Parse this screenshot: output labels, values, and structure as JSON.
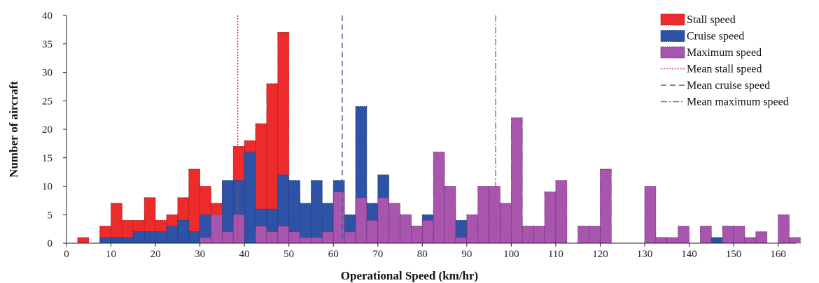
{
  "chart_data": {
    "type": "bar",
    "xlabel": "Operational Speed (km/hr)",
    "ylabel": "Number of aircraft",
    "xlim": [
      0,
      164
    ],
    "ylim": [
      0,
      40
    ],
    "x_ticks": [
      0,
      10,
      20,
      30,
      40,
      50,
      60,
      70,
      80,
      90,
      100,
      110,
      120,
      130,
      140,
      150,
      160
    ],
    "y_ticks": [
      0,
      5,
      10,
      15,
      20,
      25,
      30,
      35,
      40
    ],
    "bin_width": 2.5,
    "legend_position": "top-right",
    "grid": false,
    "series": [
      {
        "name": "Stall speed",
        "color": "#ee2b2b",
        "bins": [
          [
            2.5,
            1
          ],
          [
            7.5,
            3
          ],
          [
            10,
            7
          ],
          [
            12.5,
            4
          ],
          [
            15,
            4
          ],
          [
            17.5,
            8
          ],
          [
            20,
            4
          ],
          [
            22.5,
            5
          ],
          [
            25,
            8
          ],
          [
            27.5,
            13
          ],
          [
            30,
            10
          ],
          [
            32.5,
            7
          ],
          [
            35,
            10
          ],
          [
            37.5,
            17
          ],
          [
            40,
            18
          ],
          [
            42.5,
            21
          ],
          [
            45,
            28
          ],
          [
            47.5,
            37
          ],
          [
            50,
            9
          ],
          [
            52.5,
            3
          ],
          [
            55,
            1
          ],
          [
            57.5,
            1
          ],
          [
            60,
            2
          ],
          [
            62.5,
            2
          ],
          [
            65,
            1
          ]
        ]
      },
      {
        "name": "Cruise speed",
        "color": "#2e52a5",
        "bins": [
          [
            7.5,
            1
          ],
          [
            10,
            1
          ],
          [
            12.5,
            1
          ],
          [
            15,
            2
          ],
          [
            17.5,
            2
          ],
          [
            20,
            2
          ],
          [
            22.5,
            3
          ],
          [
            25,
            4
          ],
          [
            27.5,
            2
          ],
          [
            30,
            5
          ],
          [
            32.5,
            3
          ],
          [
            35,
            11
          ],
          [
            37.5,
            11
          ],
          [
            40,
            16
          ],
          [
            42.5,
            6
          ],
          [
            45,
            6
          ],
          [
            47.5,
            12
          ],
          [
            50,
            11
          ],
          [
            52.5,
            7
          ],
          [
            55,
            11
          ],
          [
            57.5,
            7
          ],
          [
            60,
            11
          ],
          [
            62.5,
            5
          ],
          [
            65,
            24
          ],
          [
            67.5,
            7
          ],
          [
            70,
            12
          ],
          [
            72.5,
            5
          ],
          [
            75,
            5
          ],
          [
            77.5,
            3
          ],
          [
            80,
            5
          ],
          [
            82.5,
            2
          ],
          [
            85,
            7
          ],
          [
            87.5,
            4
          ],
          [
            132.5,
            1
          ],
          [
            145,
            1
          ]
        ]
      },
      {
        "name": "Maximum speed",
        "color": "#a855ad",
        "bins": [
          [
            30,
            1
          ],
          [
            32.5,
            5
          ],
          [
            35,
            2
          ],
          [
            37.5,
            5
          ],
          [
            42.5,
            3
          ],
          [
            45,
            2
          ],
          [
            47.5,
            3
          ],
          [
            50,
            2
          ],
          [
            52.5,
            1
          ],
          [
            55,
            1
          ],
          [
            57.5,
            2
          ],
          [
            60,
            9
          ],
          [
            62.5,
            2
          ],
          [
            65,
            8
          ],
          [
            67.5,
            4
          ],
          [
            70,
            8
          ],
          [
            72.5,
            7
          ],
          [
            75,
            5
          ],
          [
            77.5,
            3
          ],
          [
            80,
            4
          ],
          [
            82.5,
            16
          ],
          [
            85,
            10
          ],
          [
            87.5,
            1
          ],
          [
            90,
            5
          ],
          [
            92.5,
            10
          ],
          [
            95,
            10
          ],
          [
            97.5,
            7
          ],
          [
            100,
            22
          ],
          [
            102.5,
            3
          ],
          [
            105,
            3
          ],
          [
            107.5,
            9
          ],
          [
            110,
            11
          ],
          [
            115,
            3
          ],
          [
            117.5,
            3
          ],
          [
            120,
            13
          ],
          [
            130,
            10
          ],
          [
            132.5,
            1
          ],
          [
            135,
            1
          ],
          [
            137.5,
            3
          ],
          [
            142.5,
            3
          ],
          [
            147.5,
            3
          ],
          [
            150,
            3
          ],
          [
            152.5,
            1
          ],
          [
            155,
            2
          ],
          [
            160,
            5
          ],
          [
            162.5,
            1
          ]
        ]
      }
    ],
    "mean_lines": [
      {
        "name": "Mean stall speed",
        "x": 38.5,
        "color": "#e0302a",
        "dash": "2,2"
      },
      {
        "name": "Mean cruise speed",
        "x": 62,
        "color": "#3d5a9a",
        "dash": "8,5"
      },
      {
        "name": "Mean maximum speed",
        "x": 96.5,
        "color": "#b045b0",
        "dash": "9,3,2,3"
      }
    ]
  }
}
